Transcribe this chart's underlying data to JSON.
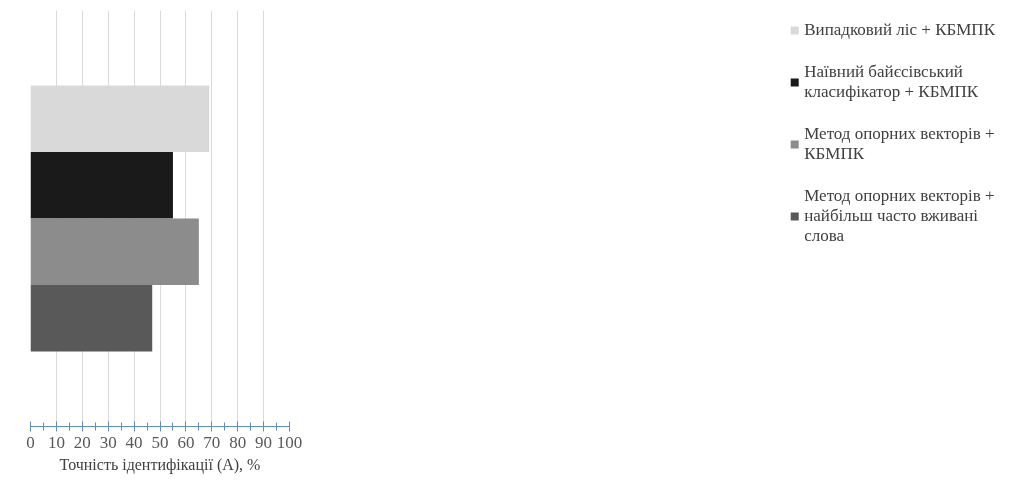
{
  "chart_data": {
    "type": "bar",
    "orientation": "horizontal",
    "xlabel": "Точність ідентифікації (А), %",
    "categories": [
      null
    ],
    "series": [
      {
        "name": "Випадковий ліс + КБМПК",
        "color": "#d9d9d9",
        "values": [
          69
        ]
      },
      {
        "name": "Наївний байєсівський класифікатор + КБМПК",
        "color": "#1a1a1a",
        "values": [
          55
        ]
      },
      {
        "name": "Метод опорних векторів + КБМПК",
        "color": "#8c8c8c",
        "values": [
          65
        ]
      },
      {
        "name": "Метод опорних векторів + найбільш часто вживані слова",
        "color": "#595959",
        "values": [
          47
        ]
      }
    ],
    "xlim": [
      0,
      100
    ],
    "xticks": [
      0,
      {
        "value": 5,
        "label": null
      },
      10,
      {
        "value": 15,
        "label": null
      },
      20,
      {
        "value": 25,
        "label": null
      },
      30,
      {
        "value": 35,
        "label": null
      },
      40,
      {
        "value": 45,
        "label": null
      },
      50,
      {
        "value": 55,
        "label": null
      },
      60,
      {
        "value": 65,
        "label": null
      },
      70,
      {
        "value": 75,
        "label": null
      },
      80,
      {
        "value": 85,
        "label": null
      },
      90,
      {
        "value": 95,
        "label": null
      },
      100
    ],
    "grid": "x",
    "legend": "right"
  }
}
